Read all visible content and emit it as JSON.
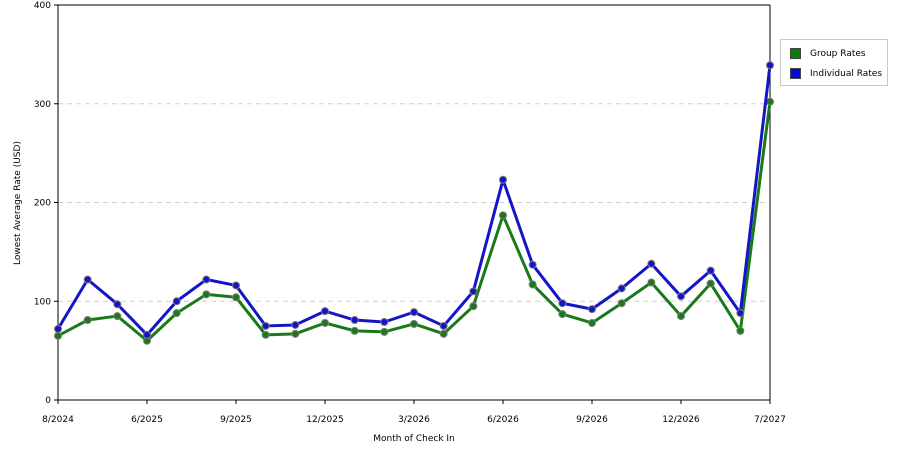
{
  "chart_data": {
    "type": "line",
    "xlabel": "Month of Check In",
    "ylabel": "Lowest Average Rate (USD)",
    "ylim": [
      0,
      400
    ],
    "yticks": [
      "0",
      "100",
      "200",
      "300",
      "400"
    ],
    "x_tick_labels": [
      "8/2024",
      "6/2025",
      "9/2025",
      "12/2025",
      "3/2026",
      "6/2026",
      "9/2026",
      "12/2026",
      "7/2027"
    ],
    "grid": "horizontal dashed",
    "legend_position": "right",
    "series": [
      {
        "name": "Group Rates",
        "color": "#1a7a1a",
        "values": [
          65,
          81,
          85,
          60,
          88,
          107,
          104,
          66,
          67,
          78,
          70,
          69,
          77,
          67,
          95,
          187,
          117,
          87,
          78,
          98,
          119,
          85,
          118,
          70,
          302
        ]
      },
      {
        "name": "Individual Rates",
        "color": "#1515c8",
        "values": [
          72,
          122,
          97,
          66,
          100,
          122,
          116,
          75,
          76,
          90,
          81,
          79,
          89,
          75,
          110,
          223,
          137,
          98,
          92,
          113,
          138,
          105,
          131,
          88,
          339
        ]
      }
    ]
  }
}
